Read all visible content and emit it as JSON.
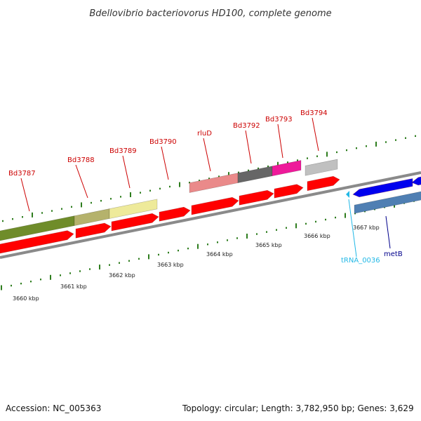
{
  "title": "Bdellovibrio bacteriovorus HD100, complete genome",
  "footer": {
    "accession": "Accession: NC_005363",
    "summary": "Topology: circular; Length: 3,782,950 bp; Genes: 3,629"
  },
  "colors": {
    "gene_red": "#ff0000",
    "gene_blue": "#0000ee",
    "steel_blue": "#4f7fb3",
    "olive": "#6f8c2a",
    "khaki": "#b5b26c",
    "pale_yellow": "#eeea9a",
    "salmon": "#ea8a8a",
    "dark_gray": "#666666",
    "magenta": "#ee1a9a",
    "light_gray": "#c0c0c0",
    "tick_green": "#2e7d1e",
    "backbone": "#8a8a8a",
    "trna_cyan": "#22b8e6",
    "metb_navy": "#00008b"
  },
  "gene_labels": [
    "Bd3787",
    "Bd3788",
    "Bd3789",
    "Bd3790",
    "rluD",
    "Bd3792",
    "Bd3793",
    "Bd3794"
  ],
  "feature_labels": {
    "trna": "tRNA_0036",
    "metb": "metB"
  },
  "tick_labels": [
    "3660 kbp",
    "3661 kbp",
    "3662 kbp",
    "3663 kbp",
    "3664 kbp",
    "3665 kbp",
    "3666 kbp",
    "3667 kbp"
  ]
}
